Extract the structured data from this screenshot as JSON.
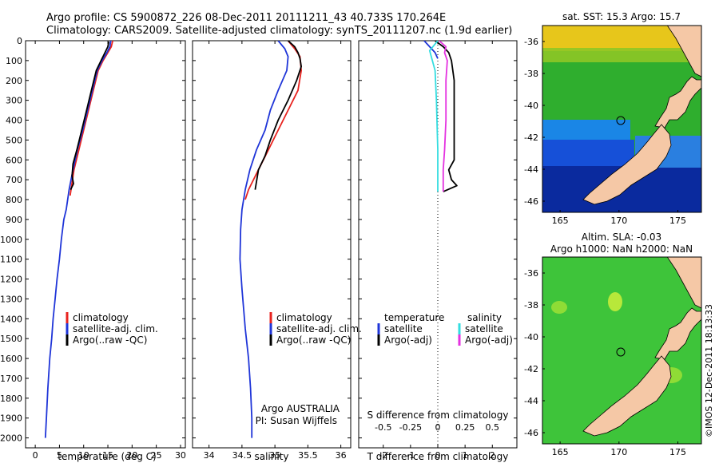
{
  "header": {
    "line1": "Argo profile: CS 5900872_226 08-Dec-2011 20111211_43 40.733S 170.264E",
    "line2": "Climatology: CARS2009. Satellite-adjusted climatology: synTS_20111207.nc (1.9d earlier)"
  },
  "colors": {
    "climatology": "#e8231f",
    "satellite": "#1f35d8",
    "argo": "#000000",
    "sat_salinity": "#33dde0",
    "argo_salinity": "#e432e0",
    "land": "#f5c8a6"
  },
  "depth_axis": {
    "ylim": [
      2050,
      0
    ],
    "ticks": [
      "0",
      "100",
      "200",
      "300",
      "400",
      "500",
      "600",
      "700",
      "800",
      "900",
      "1000",
      "1100",
      "1200",
      "1300",
      "1400",
      "1500",
      "1600",
      "1700",
      "1800",
      "1900",
      "2000"
    ]
  },
  "temp_panel": {
    "xlabel": "temperature (deg C)",
    "ticks": [
      "0",
      "5",
      "10",
      "15",
      "20",
      "25",
      "30"
    ],
    "legend": [
      "climatology",
      "satellite-adj. clim.",
      "Argo(..raw -QC)"
    ]
  },
  "sal_panel": {
    "xlabel": "salinity",
    "ticks": [
      "34",
      "34.5",
      "35",
      "35.5",
      "36"
    ],
    "legend": [
      "climatology",
      "satellite-adj. clim.",
      "Argo(..raw -QC)"
    ],
    "note1": "Argo AUSTRALIA",
    "note2": "PI: Susan Wijffels"
  },
  "diff_panel": {
    "top_label": "S difference from climatology",
    "top_ticks": [
      "-0.5",
      "-0.25",
      "0",
      "0.25",
      "0.5"
    ],
    "xlabel": "T difference from climatology",
    "ticks": [
      "-2",
      "-1",
      "0",
      "1",
      "2"
    ],
    "legend_temp_title": "temperature",
    "legend_sal_title": "salinity",
    "legend_temp": [
      "satellite",
      "Argo(-adj)"
    ],
    "legend_sal": [
      "satellite",
      "Argo(-adj)"
    ]
  },
  "map_top": {
    "title": "sat. SST: 15.3 Argo: 15.7",
    "yticks": [
      "-36",
      "-38",
      "-40",
      "-42",
      "-44",
      "-46"
    ],
    "xticks": [
      "165",
      "170",
      "175"
    ]
  },
  "map_bottom": {
    "title1": "Altim. SLA: -0.03",
    "title2": "Argo h1000: NaN h2000: NaN",
    "yticks": [
      "-36",
      "-38",
      "-40",
      "-42",
      "-44",
      "-46"
    ],
    "xticks": [
      "165",
      "170",
      "175"
    ]
  },
  "stamp": "©IMOS 12-Dec-2011 18:13:33",
  "chart_data": [
    {
      "type": "line",
      "name": "temperature profile",
      "xlabel": "temperature (deg C)",
      "ylabel": "",
      "xlim": [
        -2,
        31
      ],
      "ylim": [
        2050,
        0
      ],
      "series": [
        {
          "name": "climatology",
          "x": [
            16.0,
            15.7,
            15.0,
            14.0,
            13.0,
            12.0,
            11.0,
            10.0,
            9.0,
            8.0,
            7.2
          ],
          "y": [
            0,
            30,
            60,
            100,
            150,
            250,
            350,
            450,
            550,
            650,
            780
          ]
        },
        {
          "name": "satellite-adj. clim.",
          "x": [
            15.6,
            15.4,
            14.8,
            13.8,
            12.8,
            11.8,
            10.8,
            9.8,
            8.7,
            7.8,
            7.0,
            6.4,
            5.9,
            5.4,
            5.0,
            4.5,
            4.1,
            3.7,
            3.4,
            3.0,
            2.6,
            2.3,
            2.1
          ],
          "y": [
            0,
            30,
            60,
            100,
            150,
            250,
            350,
            450,
            550,
            650,
            750,
            850,
            900,
            1000,
            1100,
            1200,
            1300,
            1400,
            1500,
            1600,
            1750,
            1900,
            2000
          ]
        },
        {
          "name": "Argo(..raw -QC)",
          "x": [
            15.2,
            15.0,
            14.4,
            13.6,
            12.6,
            11.6,
            10.6,
            9.6,
            8.6,
            7.8,
            7.6,
            7.9,
            7.3
          ],
          "y": [
            5,
            30,
            60,
            100,
            150,
            250,
            350,
            450,
            550,
            620,
            680,
            720,
            750
          ]
        }
      ]
    },
    {
      "type": "line",
      "name": "salinity profile",
      "xlabel": "salinity",
      "ylabel": "",
      "xlim": [
        33.75,
        36.15
      ],
      "ylim": [
        2050,
        0
      ],
      "series": [
        {
          "name": "climatology",
          "x": [
            35.2,
            35.3,
            35.38,
            35.4,
            35.35,
            35.2,
            35.05,
            34.9,
            34.75,
            34.6,
            34.55
          ],
          "y": [
            0,
            40,
            80,
            150,
            250,
            350,
            450,
            550,
            650,
            750,
            800
          ]
        },
        {
          "name": "satellite-adj. clim.",
          "x": [
            35.05,
            35.15,
            35.2,
            35.18,
            35.05,
            34.93,
            34.85,
            34.72,
            34.62,
            34.55,
            34.5,
            34.48,
            34.47,
            34.5,
            34.55,
            34.6,
            34.63,
            34.65,
            34.65
          ],
          "y": [
            0,
            40,
            80,
            150,
            250,
            350,
            450,
            550,
            650,
            750,
            850,
            950,
            1100,
            1250,
            1450,
            1600,
            1750,
            1900,
            2000
          ]
        },
        {
          "name": "Argo(..raw -QC)",
          "x": [
            35.2,
            35.3,
            35.35,
            35.38,
            35.4,
            35.33,
            35.2,
            35.05,
            34.93,
            34.85,
            34.75,
            34.7
          ],
          "y": [
            0,
            30,
            60,
            90,
            130,
            200,
            300,
            400,
            500,
            580,
            650,
            750
          ]
        }
      ]
    },
    {
      "type": "line",
      "name": "difference from climatology",
      "xlabel": "T difference from climatology",
      "ylabel": "",
      "xlim": [
        -2.9,
        2.9
      ],
      "ylim": [
        2050,
        0
      ],
      "series": [
        {
          "name": "temperature satellite",
          "x": [
            -0.5,
            -0.3,
            -0.1,
            0.0
          ],
          "y": [
            0,
            30,
            60,
            90
          ]
        },
        {
          "name": "temperature Argo(-adj)",
          "x": [
            -0.1,
            0.2,
            0.4,
            0.5,
            0.6,
            0.6,
            0.6,
            0.6,
            0.6,
            0.4,
            0.5,
            0.7,
            0.2
          ],
          "y": [
            0,
            30,
            60,
            100,
            200,
            300,
            400,
            500,
            600,
            650,
            700,
            730,
            760
          ]
        },
        {
          "name": "salinity satellite",
          "x": [
            0.0,
            -0.3,
            -0.1,
            -0.05,
            -0.02,
            0.0,
            0.0,
            0.0
          ],
          "y": [
            0,
            50,
            150,
            300,
            450,
            550,
            650,
            760
          ]
        },
        {
          "name": "salinity Argo(-adj)",
          "x": [
            0.05,
            0.3,
            0.25,
            0.35,
            0.3,
            0.3,
            0.25,
            0.2,
            0.2
          ],
          "y": [
            0,
            30,
            60,
            100,
            200,
            400,
            550,
            650,
            760
          ]
        }
      ]
    }
  ]
}
